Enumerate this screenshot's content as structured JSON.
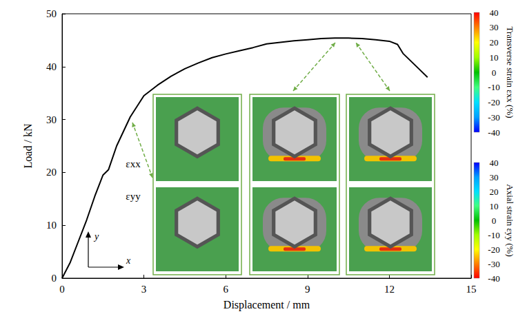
{
  "chart_data": {
    "type": "line",
    "xlabel": "Displacement / mm",
    "ylabel": "Load / kN",
    "x": [
      0,
      0.3,
      0.6,
      0.9,
      1.2,
      1.5,
      1.7,
      2.0,
      2.5,
      3.0,
      3.5,
      4.0,
      4.5,
      5.0,
      5.5,
      6.0,
      6.5,
      7.0,
      7.5,
      8.0,
      8.5,
      9.0,
      9.5,
      10.0,
      10.5,
      11.0,
      11.5,
      12.0,
      12.3,
      12.5,
      12.8,
      13.1,
      13.4
    ],
    "values": [
      0,
      3,
      7,
      11,
      15.5,
      19.5,
      20.5,
      25,
      30.5,
      34.5,
      36.5,
      38.2,
      39.6,
      40.7,
      41.7,
      42.4,
      43,
      43.6,
      44.3,
      44.6,
      44.9,
      45.1,
      45.3,
      45.4,
      45.4,
      45.3,
      45.1,
      44.8,
      44.2,
      42.5,
      41,
      39.5,
      38
    ],
    "color": "#000000",
    "xlim": [
      0,
      15
    ],
    "ylim": [
      0,
      50
    ],
    "xticks": [
      0,
      3,
      6,
      9,
      12,
      15
    ],
    "yticks": [
      0,
      10,
      20,
      30,
      40,
      50
    ],
    "grid": false,
    "annotations": [
      "εxx",
      "εyy",
      "y",
      "x"
    ],
    "colorbars": [
      {
        "title": "Transverse strain εxx (%)",
        "range": [
          -40,
          40
        ],
        "ticks": [
          40,
          30,
          20,
          10,
          0,
          -10,
          -20,
          -30,
          -40
        ],
        "colors": [
          "#0000ff",
          "#00a0ff",
          "#00e0ff",
          "#40ff80",
          "#00c000",
          "#a0ff00",
          "#ffff00",
          "#ff8000",
          "#ff0000"
        ]
      },
      {
        "title": "Axial strain εyy (%)",
        "range": [
          -40,
          40
        ],
        "ticks": [
          40,
          30,
          20,
          10,
          0,
          -10,
          -20,
          -30,
          -40
        ],
        "colors": [
          "#ff0000",
          "#ff8000",
          "#ffff00",
          "#a0ff00",
          "#00c000",
          "#40ff80",
          "#00e0ff",
          "#00a0ff",
          "#0000ff"
        ]
      }
    ]
  }
}
